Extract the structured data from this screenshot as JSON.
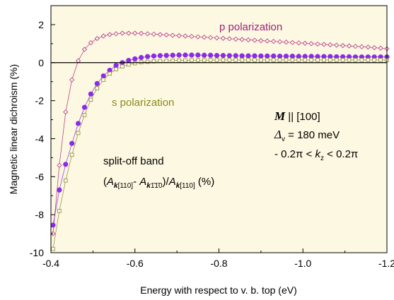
{
  "chart_data": {
    "type": "scatter",
    "xlabel": "Energy with respect to v. b. top (eV)",
    "ylabel": "Magnetic linear dichroism (%)",
    "xlim": [
      -0.4,
      -1.2
    ],
    "ylim": [
      -10,
      3
    ],
    "x_ticks": [
      -0.4,
      -0.6,
      -0.8,
      -1.0,
      -1.2
    ],
    "x_tick_labels": [
      "-0.4",
      "-0.6",
      "-0.8",
      "-1.0",
      "-1.2"
    ],
    "y_ticks": [
      -10,
      -8,
      -6,
      -4,
      -2,
      0,
      2
    ],
    "y_tick_labels": [
      "-10",
      "-8",
      "-6",
      "-4",
      "-2",
      "0",
      "2"
    ],
    "zero_line": true,
    "grid": false,
    "background_color": "#fdf8e1",
    "series": [
      {
        "name": "p polarization",
        "color": "#b0308a",
        "marker": "open-diamond",
        "x": [
          -0.405,
          -0.42,
          -0.435,
          -0.45,
          -0.465,
          -0.48,
          -0.495,
          -0.51,
          -0.525,
          -0.54,
          -0.555,
          -0.57,
          -0.585,
          -0.6,
          -0.615,
          -0.63,
          -0.645,
          -0.66,
          -0.675,
          -0.69,
          -0.705,
          -0.72,
          -0.735,
          -0.75,
          -0.765,
          -0.78,
          -0.795,
          -0.81,
          -0.825,
          -0.84,
          -0.855,
          -0.87,
          -0.885,
          -0.9,
          -0.915,
          -0.93,
          -0.945,
          -0.96,
          -0.975,
          -0.99,
          -1.005,
          -1.02,
          -1.035,
          -1.05,
          -1.065,
          -1.08,
          -1.095,
          -1.11,
          -1.125,
          -1.14,
          -1.155,
          -1.17,
          -1.185,
          -1.2
        ],
        "y": [
          -9.0,
          -5.4,
          -2.6,
          -0.9,
          0.1,
          0.7,
          1.05,
          1.27,
          1.4,
          1.48,
          1.52,
          1.55,
          1.55,
          1.55,
          1.54,
          1.52,
          1.5,
          1.48,
          1.46,
          1.44,
          1.42,
          1.4,
          1.38,
          1.36,
          1.34,
          1.32,
          1.3,
          1.28,
          1.26,
          1.24,
          1.22,
          1.2,
          1.18,
          1.16,
          1.14,
          1.12,
          1.1,
          1.08,
          1.06,
          1.04,
          1.02,
          1.0,
          0.98,
          0.96,
          0.94,
          0.92,
          0.9,
          0.88,
          0.86,
          0.84,
          0.82,
          0.79,
          0.76,
          0.73
        ]
      },
      {
        "name": "",
        "color": "#8a2be8",
        "marker": "filled-circle",
        "x": [
          -0.405,
          -0.42,
          -0.435,
          -0.45,
          -0.465,
          -0.48,
          -0.495,
          -0.51,
          -0.525,
          -0.54,
          -0.555,
          -0.57,
          -0.585,
          -0.6,
          -0.615,
          -0.63,
          -0.645,
          -0.66,
          -0.675,
          -0.69,
          -0.705,
          -0.72,
          -0.735,
          -0.75,
          -0.765,
          -0.78,
          -0.795,
          -0.81,
          -0.825,
          -0.84,
          -0.855,
          -0.87,
          -0.885,
          -0.9,
          -0.915,
          -0.93,
          -0.945,
          -0.96,
          -0.975,
          -0.99,
          -1.005,
          -1.02,
          -1.035,
          -1.05,
          -1.065,
          -1.08,
          -1.095,
          -1.11,
          -1.125,
          -1.14,
          -1.155,
          -1.17,
          -1.185,
          -1.2
        ],
        "y": [
          -8.55,
          -6.7,
          -5.35,
          -4.25,
          -3.2,
          -2.35,
          -1.65,
          -1.1,
          -0.7,
          -0.4,
          -0.15,
          0.0,
          0.12,
          0.2,
          0.27,
          0.32,
          0.35,
          0.37,
          0.38,
          0.39,
          0.4,
          0.4,
          0.4,
          0.4,
          0.39,
          0.39,
          0.38,
          0.38,
          0.37,
          0.37,
          0.36,
          0.36,
          0.36,
          0.35,
          0.35,
          0.35,
          0.34,
          0.34,
          0.34,
          0.33,
          0.33,
          0.33,
          0.32,
          0.32,
          0.32,
          0.31,
          0.31,
          0.31,
          0.3,
          0.3,
          0.3,
          0.3,
          0.3,
          0.3
        ]
      },
      {
        "name": "s polarization",
        "color": "#8a8a3a",
        "marker": "open-square",
        "x": [
          -0.405,
          -0.42,
          -0.435,
          -0.45,
          -0.465,
          -0.48,
          -0.495,
          -0.51,
          -0.525,
          -0.54,
          -0.555,
          -0.57,
          -0.585,
          -0.6,
          -0.615,
          -0.63,
          -0.645,
          -0.66,
          -0.675,
          -0.69,
          -0.705,
          -0.72,
          -0.735,
          -0.75,
          -0.765,
          -0.78,
          -0.795,
          -0.81,
          -0.825,
          -0.84,
          -0.855,
          -0.87,
          -0.885,
          -0.9,
          -0.915,
          -0.93,
          -0.945,
          -0.96,
          -0.975,
          -0.99,
          -1.005,
          -1.02,
          -1.035,
          -1.05,
          -1.065,
          -1.08,
          -1.095,
          -1.11,
          -1.125,
          -1.14,
          -1.155,
          -1.17,
          -1.185,
          -1.2
        ],
        "y": [
          -9.8,
          -7.8,
          -6.2,
          -4.85,
          -3.7,
          -2.75,
          -1.95,
          -1.35,
          -0.9,
          -0.58,
          -0.35,
          -0.2,
          -0.1,
          -0.03,
          0.02,
          0.05,
          0.07,
          0.09,
          0.1,
          0.11,
          0.12,
          0.12,
          0.13,
          0.13,
          0.13,
          0.14,
          0.14,
          0.14,
          0.14,
          0.14,
          0.14,
          0.14,
          0.14,
          0.14,
          0.14,
          0.14,
          0.14,
          0.14,
          0.14,
          0.14,
          0.14,
          0.14,
          0.14,
          0.14,
          0.14,
          0.14,
          0.14,
          0.14,
          0.14,
          0.14,
          0.14,
          0.14,
          0.14,
          0.14
        ]
      }
    ],
    "annotations": {
      "p_label": "p polarization",
      "s_label": "s polarization",
      "m_symbol": "M",
      "m_rest": " || [100]",
      "delta_symbol": "Δ",
      "delta_sub": "v",
      "delta_rest": " = 180 meV",
      "k_pre": "- 0.2π < ",
      "k_var": "k",
      "k_sub": "z",
      "k_post": " < 0.2π",
      "splitoff_label": "split-off band",
      "formula_open": "(",
      "formula_A": "A",
      "formula_k": "k",
      "formula_sub1": "[110]",
      "formula_minus": "- ",
      "formula_sub2": "[110]",
      "formula_bar_indices": "1̄1̄0",
      "formula_close": ")/",
      "formula_sub3": "[110]",
      "formula_unit": " (%)"
    }
  }
}
